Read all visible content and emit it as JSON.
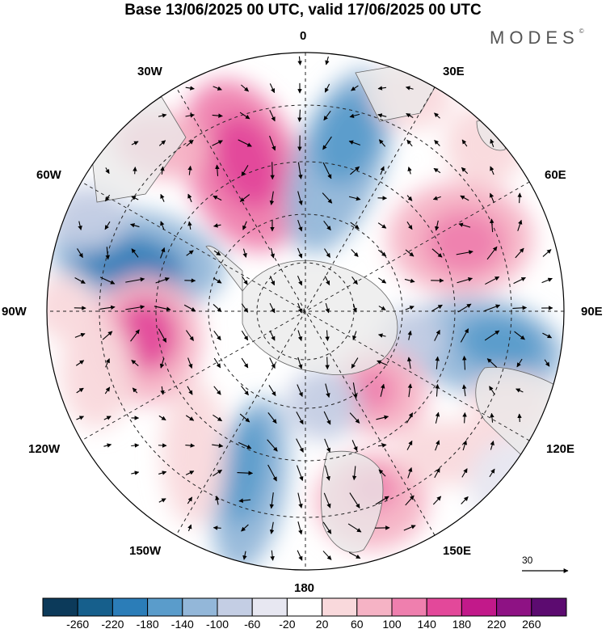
{
  "title": "Base 13/06/2025 00 UTC, valid 17/06/2025 00 UTC",
  "brand": {
    "text": "MODES",
    "mark": "©"
  },
  "longitude_labels": {
    "n0": "0",
    "e30": "30E",
    "e60": "60E",
    "e90": "90E",
    "e120": "120E",
    "e150": "150E",
    "s180": "180",
    "w150": "150W",
    "w120": "120W",
    "w90": "90W",
    "w60": "60W",
    "w30": "30W"
  },
  "reference_vector": {
    "label": "30"
  },
  "colorbar": {
    "colors": [
      "#0c3a5a",
      "#165f8c",
      "#2b7db8",
      "#5a9ccb",
      "#93b7d9",
      "#c4cee4",
      "#e7e7f1",
      "#ffffff",
      "#f9d9dc",
      "#f6b3c5",
      "#ef7fae",
      "#e3489a",
      "#c2198a",
      "#8e1284",
      "#5c0b70"
    ],
    "tick_labels": [
      "-260",
      "-220",
      "-180",
      "-140",
      "-100",
      "-60",
      "-20",
      "20",
      "60",
      "100",
      "140",
      "180",
      "220",
      "260"
    ]
  },
  "map_colors": {
    "land": "#e9e9e9",
    "coastline": "#666666",
    "grid": "#222222"
  }
}
